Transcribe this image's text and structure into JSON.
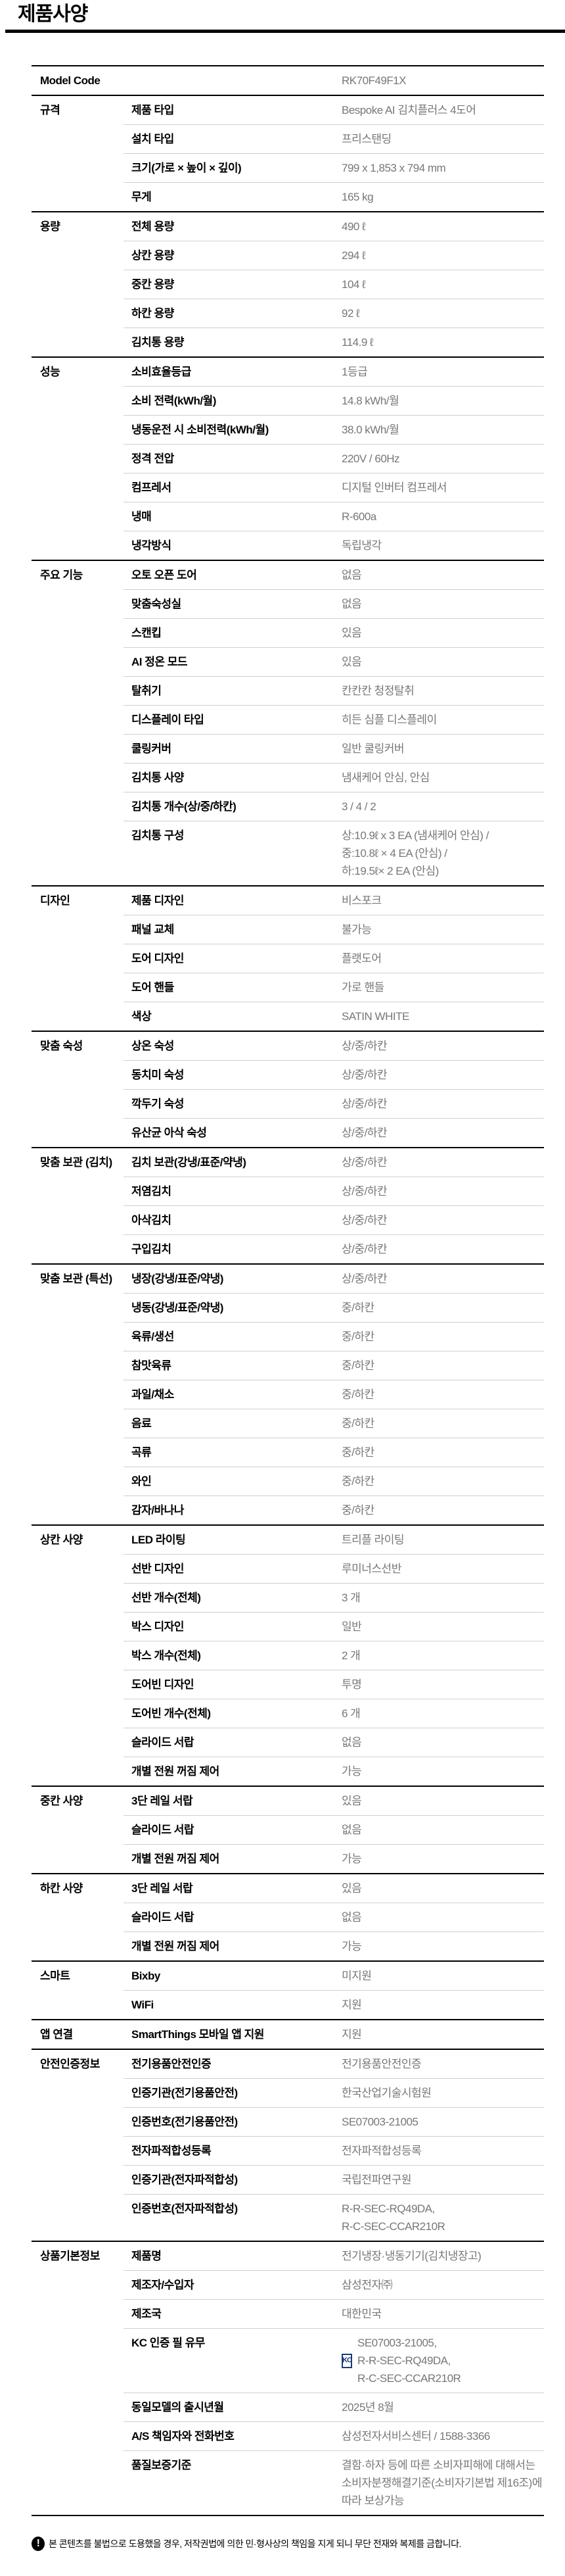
{
  "title": "제품사양",
  "model": {
    "label": "Model Code",
    "value": "RK70F49F1X"
  },
  "sections": [
    {
      "label": "규격",
      "rows": [
        {
          "label": "제품 타입",
          "value": "Bespoke AI 김치플러스 4도어"
        },
        {
          "label": "설치 타입",
          "value": "프리스탠딩"
        },
        {
          "label": "크기(가로 × 높이 × 깊이)",
          "value": "799 x 1,853 x 794 mm"
        },
        {
          "label": "무게",
          "value": "165 kg"
        }
      ]
    },
    {
      "label": "용량",
      "rows": [
        {
          "label": "전체 용량",
          "value": "490 ℓ"
        },
        {
          "label": "상칸 용량",
          "value": "294 ℓ"
        },
        {
          "label": "중칸 용량",
          "value": "104 ℓ"
        },
        {
          "label": "하칸 용량",
          "value": "92 ℓ"
        },
        {
          "label": "김치통 용량",
          "value": "114.9 ℓ"
        }
      ]
    },
    {
      "label": "성능",
      "rows": [
        {
          "label": "소비효율등급",
          "value": "1등급"
        },
        {
          "label": "소비 전력(kWh/월)",
          "value": "14.8 kWh/월"
        },
        {
          "label": "냉동운전 시 소비전력(kWh/월)",
          "value": "38.0 kWh/월"
        },
        {
          "label": "정격 전압",
          "value": "220V / 60Hz"
        },
        {
          "label": "컴프레서",
          "value": "디지털 인버터 컴프레서"
        },
        {
          "label": "냉매",
          "value": "R-600a"
        },
        {
          "label": "냉각방식",
          "value": "독립냉각"
        }
      ]
    },
    {
      "label": "주요 기능",
      "rows": [
        {
          "label": "오토 오픈 도어",
          "value": "없음"
        },
        {
          "label": "맞춤숙성실",
          "value": "없음"
        },
        {
          "label": "스캔킵",
          "value": "있음"
        },
        {
          "label": "AI 정온 모드",
          "value": "있음"
        },
        {
          "label": "탈취기",
          "value": "칸칸칸 청정탈취"
        },
        {
          "label": "디스플레이 타입",
          "value": "히든 심플 디스플레이"
        },
        {
          "label": "쿨링커버",
          "value": "일반 쿨링커버"
        },
        {
          "label": "김치통 사양",
          "value": "냄새케어 안심, 안심"
        },
        {
          "label": "김치통 개수(상/중/하칸)",
          "value": "3 / 4 / 2"
        },
        {
          "label": "김치통 구성",
          "lines": [
            "상:10.9ℓ x 3 EA (냄새케어 안심) /",
            "중:10.8ℓ × 4 EA (안심) /",
            "하:19.5ℓ× 2 EA (안심)"
          ]
        }
      ]
    },
    {
      "label": "디자인",
      "rows": [
        {
          "label": "제품 디자인",
          "value": "비스포크"
        },
        {
          "label": "패널 교체",
          "value": "불가능"
        },
        {
          "label": "도어 디자인",
          "value": "플랫도어"
        },
        {
          "label": "도어 핸들",
          "value": "가로 핸들"
        },
        {
          "label": "색상",
          "value": "SATIN WHITE"
        }
      ]
    },
    {
      "label": "맞춤 숙성",
      "rows": [
        {
          "label": "상온 숙성",
          "value": "상/중/하칸"
        },
        {
          "label": "동치미 숙성",
          "value": "상/중/하칸"
        },
        {
          "label": "깍두기 숙성",
          "value": "상/중/하칸"
        },
        {
          "label": "유산균 아삭 숙성",
          "value": "상/중/하칸"
        }
      ]
    },
    {
      "label": "맞춤 보관 (김치)",
      "rows": [
        {
          "label": "김치 보관(강냉/표준/약냉)",
          "value": "상/중/하칸"
        },
        {
          "label": "저염김치",
          "value": "상/중/하칸"
        },
        {
          "label": "아삭김치",
          "value": "상/중/하칸"
        },
        {
          "label": "구입김치",
          "value": "상/중/하칸"
        }
      ]
    },
    {
      "label": "맞춤 보관 (특선)",
      "rows": [
        {
          "label": "냉장(강냉/표준/약냉)",
          "value": "상/중/하칸"
        },
        {
          "label": "냉동(강냉/표준/약냉)",
          "value": "중/하칸"
        },
        {
          "label": "육류/생선",
          "value": "중/하칸"
        },
        {
          "label": "참맛육류",
          "value": "중/하칸"
        },
        {
          "label": "과일/채소",
          "value": "중/하칸"
        },
        {
          "label": "음료",
          "value": "중/하칸"
        },
        {
          "label": "곡류",
          "value": "중/하칸"
        },
        {
          "label": "와인",
          "value": "중/하칸"
        },
        {
          "label": "감자/바나나",
          "value": "중/하칸"
        }
      ]
    },
    {
      "label": "상칸 사양",
      "rows": [
        {
          "label": "LED 라이팅",
          "value": "트리플 라이팅"
        },
        {
          "label": "선반 디자인",
          "value": "루미너스선반"
        },
        {
          "label": "선반 개수(전체)",
          "value": "3 개"
        },
        {
          "label": "박스 디자인",
          "value": "일반"
        },
        {
          "label": "박스 개수(전체)",
          "value": "2 개"
        },
        {
          "label": "도어빈 디자인",
          "value": "투명"
        },
        {
          "label": "도어빈 개수(전체)",
          "value": "6 개"
        },
        {
          "label": "슬라이드 서랍",
          "value": "없음"
        },
        {
          "label": "개별 전원 꺼짐 제어",
          "value": "가능"
        }
      ]
    },
    {
      "label": "중칸 사양",
      "rows": [
        {
          "label": "3단 레일 서랍",
          "value": "있음"
        },
        {
          "label": "슬라이드 서랍",
          "value": "없음"
        },
        {
          "label": "개별 전원 꺼짐 제어",
          "value": "가능"
        }
      ]
    },
    {
      "label": "하칸 사양",
      "rows": [
        {
          "label": "3단 레일 서랍",
          "value": "있음"
        },
        {
          "label": "슬라이드 서랍",
          "value": "없음"
        },
        {
          "label": "개별 전원 꺼짐 제어",
          "value": "가능"
        }
      ]
    },
    {
      "label": "스마트",
      "rows": [
        {
          "label": "Bixby",
          "value": "미지원"
        },
        {
          "label": "WiFi",
          "value": "지원"
        }
      ]
    },
    {
      "label": "앱 연결",
      "rows": [
        {
          "label": "SmartThings 모바일 앱 지원",
          "value": "지원"
        }
      ]
    },
    {
      "label": "안전인증정보",
      "rows": [
        {
          "label": "전기용품안전인증",
          "value": "전기용품안전인증"
        },
        {
          "label": "인증기관(전기용품안전)",
          "value": "한국산업기술시험원"
        },
        {
          "label": "인증번호(전기용품안전)",
          "value": "SE07003-21005"
        },
        {
          "label": "전자파적합성등록",
          "value": "전자파적합성등록"
        },
        {
          "label": "인증기관(전자파적합성)",
          "value": "국립전파연구원"
        },
        {
          "label": "인증번호(전자파적합성)",
          "lines": [
            "R-R-SEC-RQ49DA,",
            "R-C-SEC-CCAR210R"
          ]
        }
      ]
    },
    {
      "label": "상품기본정보",
      "rows": [
        {
          "label": "제품명",
          "value": "전기냉장·냉동기기(김치냉장고)"
        },
        {
          "label": "제조자/수입자",
          "value": "삼성전자㈜"
        },
        {
          "label": "제조국",
          "value": "대한민국"
        },
        {
          "label": "KC 인증 필 유무",
          "kc": true,
          "kc_mark": "KC",
          "lines": [
            "SE07003-21005,",
            "R-R-SEC-RQ49DA,",
            "R-C-SEC-CCAR210R"
          ]
        },
        {
          "label": "동일모델의 출시년월",
          "value": "2025년 8월"
        },
        {
          "label": "A/S 책임자와 전화번호",
          "value": "삼성전자서비스센터 / 1588-3366"
        },
        {
          "label": "품질보증기준",
          "value": "결함·하자 등에 따른 소비자피해에 대해서는 소비자분쟁해결기준(소비자기본법 제16조)에 따라 보상가능"
        }
      ]
    }
  ],
  "notice": {
    "icon": "exclamation-icon",
    "glyph": "!",
    "text": "본 콘텐츠를 불법으로 도용했을 경우, 저작권법에 의한 민·형사상의 책임을 지게 되니 무단 전재와 복제를 금합니다."
  },
  "colors": {
    "label": "#000000",
    "value": "#777777",
    "divider": "#cfcfcf",
    "kc": "#1a3a7a"
  }
}
